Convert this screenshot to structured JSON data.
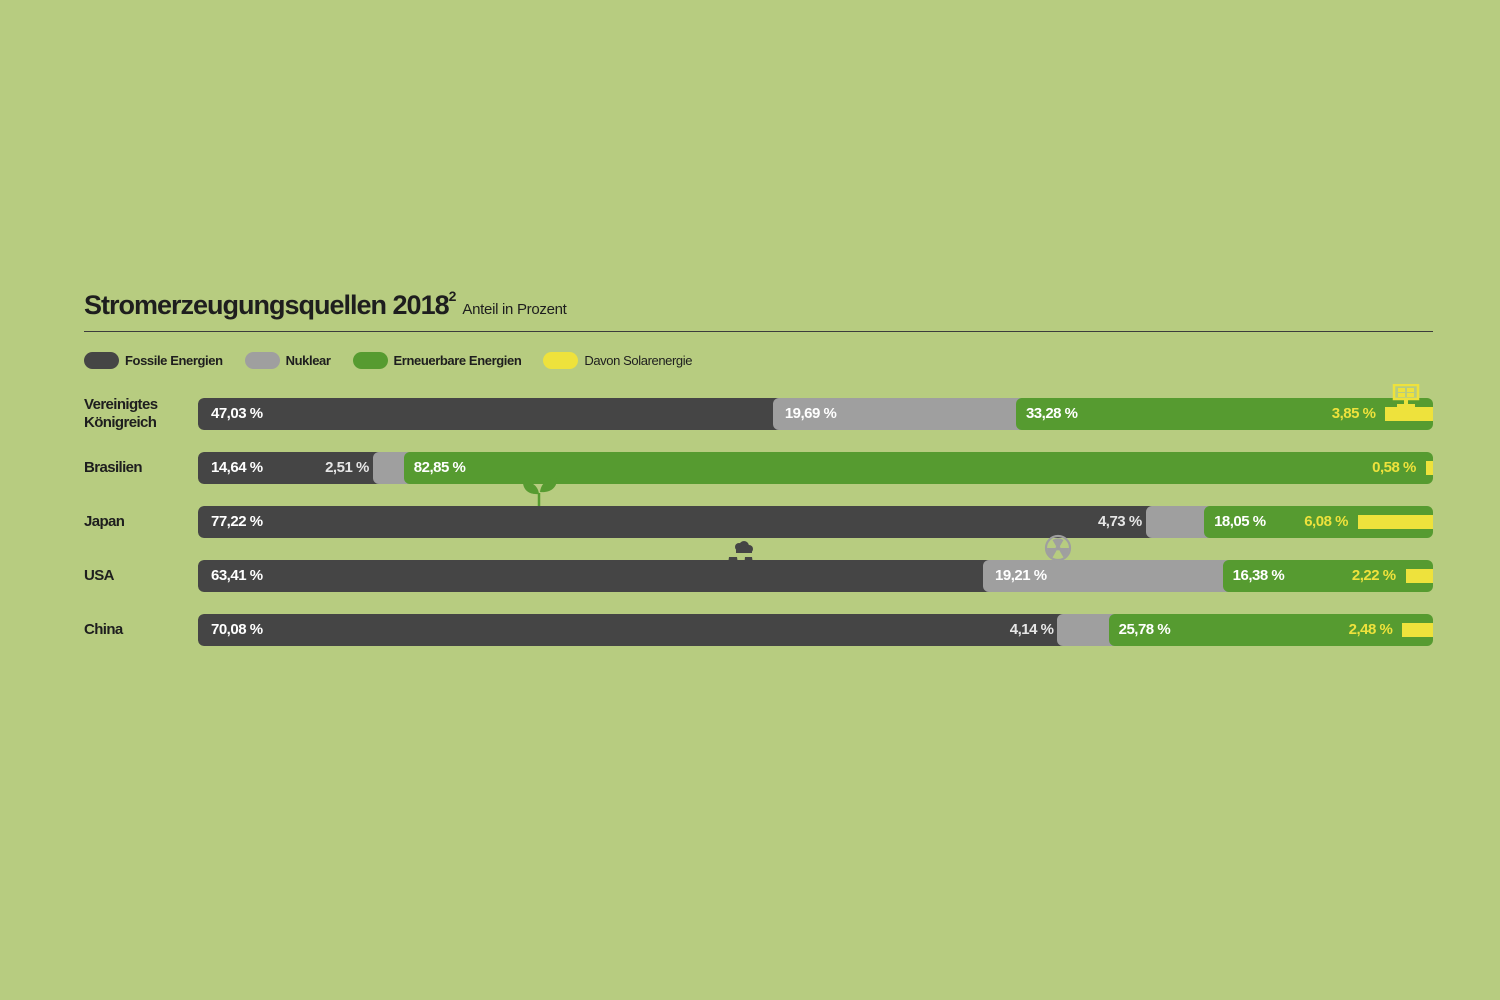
{
  "chart_data": {
    "type": "bar",
    "stacked": true,
    "orientation": "horizontal",
    "title": "Stromerzeugungsquellen 2018",
    "title_sup": "2",
    "subtitle": "Anteil in Prozent",
    "legend": [
      {
        "label": "Fossile Energien",
        "color": "#454545"
      },
      {
        "label": "Nuklear",
        "color": "#9f9f9f"
      },
      {
        "label": "Erneuerbare Energien",
        "color": "#569b30"
      },
      {
        "label": "Davon Solarenergie",
        "color": "#eee23c"
      }
    ],
    "rows": [
      {
        "country": "Vereinigtes Königreich",
        "fossil": 47.03,
        "nuclear": 19.69,
        "renewable": 33.28,
        "solar": 3.85,
        "labels": {
          "fossil": "47,03 %",
          "nuclear": "19,69 %",
          "renewable": "33,28 %",
          "solar": "3,85 %"
        },
        "icon": "solar-panel-icon"
      },
      {
        "country": "Brasilien",
        "fossil": 14.64,
        "nuclear": 2.51,
        "renewable": 82.85,
        "solar": 0.58,
        "labels": {
          "fossil": "14,64 %",
          "nuclear": "2,51 %",
          "renewable": "82,85 %",
          "solar": "0,58 %"
        },
        "icon": "leaf-icon"
      },
      {
        "country": "Japan",
        "fossil": 77.22,
        "nuclear": 4.73,
        "renewable": 18.05,
        "solar": 6.08,
        "labels": {
          "fossil": "77,22 %",
          "nuclear": "4,73 %",
          "renewable": "18,05 %",
          "solar": "6,08 %"
        },
        "icon": "power-plant-icon"
      },
      {
        "country": "USA",
        "fossil": 63.41,
        "nuclear": 19.21,
        "renewable": 16.38,
        "solar": 2.22,
        "labels": {
          "fossil": "63,41 %",
          "nuclear": "19,21 %",
          "renewable": "16,38 %",
          "solar": "2,22 %"
        },
        "icon": "radiation-icon"
      },
      {
        "country": "China",
        "fossil": 70.08,
        "nuclear": 4.14,
        "renewable": 25.78,
        "solar": 2.48,
        "labels": {
          "fossil": "70,08 %",
          "nuclear": "4,14 %",
          "renewable": "25,78 %",
          "solar": "2,48 %"
        },
        "icon": ""
      }
    ]
  }
}
